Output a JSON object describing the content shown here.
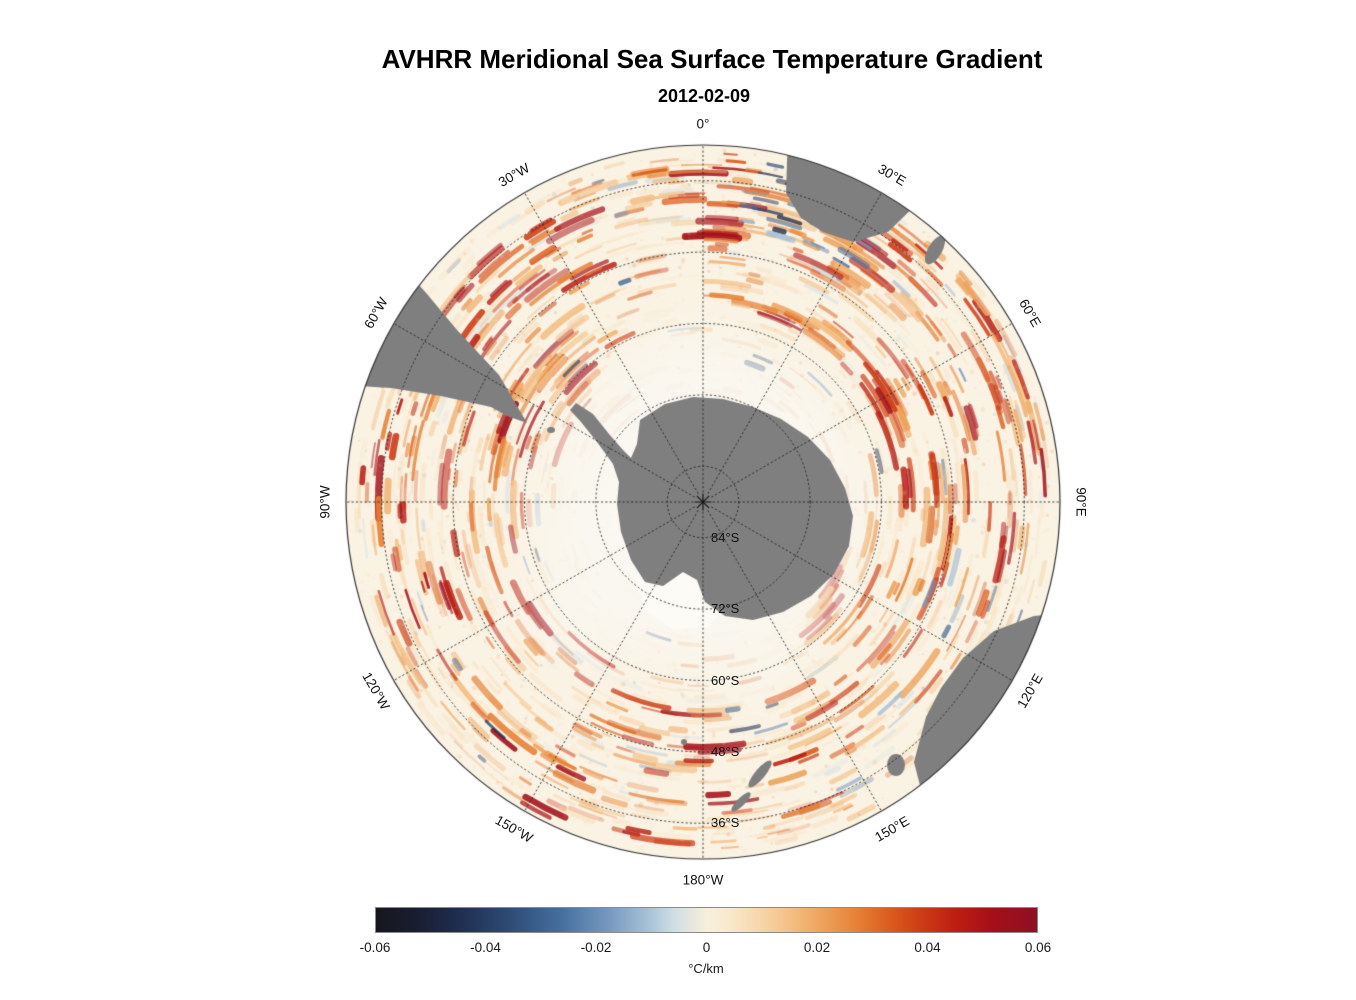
{
  "title": "AVHRR Meridional Sea Surface Temperature Gradient",
  "subtitle": "2012-02-09",
  "chart_data": {
    "type": "heatmap",
    "projection": "south_polar_stereographic",
    "variable": "Meridional Sea Surface Temperature Gradient",
    "instrument": "AVHRR",
    "date": "2012-02-09",
    "units": "°C/km",
    "lon_labels": [
      {
        "label": "0°",
        "azimuth_deg": 0
      },
      {
        "label": "30°E",
        "azimuth_deg": 30
      },
      {
        "label": "60°E",
        "azimuth_deg": 60
      },
      {
        "label": "90°E",
        "azimuth_deg": 90
      },
      {
        "label": "120°E",
        "azimuth_deg": 120
      },
      {
        "label": "150°E",
        "azimuth_deg": 150
      },
      {
        "label": "180°W",
        "azimuth_deg": 180
      },
      {
        "label": "150°W",
        "azimuth_deg": -150
      },
      {
        "label": "120°W",
        "azimuth_deg": -120
      },
      {
        "label": "90°W",
        "azimuth_deg": -90
      },
      {
        "label": "60°W",
        "azimuth_deg": -60
      },
      {
        "label": "30°W",
        "azimuth_deg": -30
      }
    ],
    "lat_labels": [
      {
        "label": "84°S",
        "lat_deg_south": 84
      },
      {
        "label": "72°S",
        "lat_deg_south": 72
      },
      {
        "label": "60°S",
        "lat_deg_south": 60
      },
      {
        "label": "48°S",
        "lat_deg_south": 48
      },
      {
        "label": "36°S",
        "lat_deg_south": 36
      }
    ],
    "colorbar": {
      "min": -0.06,
      "max": 0.06,
      "ticks": [
        "-0.06",
        "-0.04",
        "-0.02",
        "0",
        "0.02",
        "0.04",
        "0.06"
      ],
      "tick_values": [
        -0.06,
        -0.04,
        -0.02,
        0,
        0.02,
        0.04,
        0.06
      ],
      "label": "°C/km",
      "gradient_stops": [
        {
          "pos": 0.0,
          "color": "#16161d"
        },
        {
          "pos": 0.06,
          "color": "#191d30"
        },
        {
          "pos": 0.12,
          "color": "#1f2c4d"
        },
        {
          "pos": 0.2,
          "color": "#2d4a74"
        },
        {
          "pos": 0.28,
          "color": "#466f9e"
        },
        {
          "pos": 0.35,
          "color": "#7597bf"
        },
        {
          "pos": 0.41,
          "color": "#a5c0d6"
        },
        {
          "pos": 0.45,
          "color": "#cfdde4"
        },
        {
          "pos": 0.485,
          "color": "#ece9dd"
        },
        {
          "pos": 0.5,
          "color": "#f7f0de"
        },
        {
          "pos": 0.53,
          "color": "#f9ead0"
        },
        {
          "pos": 0.58,
          "color": "#f7d7ab"
        },
        {
          "pos": 0.63,
          "color": "#f3bd82"
        },
        {
          "pos": 0.68,
          "color": "#eda057"
        },
        {
          "pos": 0.73,
          "color": "#e57f33"
        },
        {
          "pos": 0.78,
          "color": "#da5a1d"
        },
        {
          "pos": 0.83,
          "color": "#cc3914"
        },
        {
          "pos": 0.88,
          "color": "#bc1c12"
        },
        {
          "pos": 0.93,
          "color": "#a70f19"
        },
        {
          "pos": 1.0,
          "color": "#8c1023"
        }
      ]
    },
    "field_notes": [
      "strong positive (red) gradient filaments in Agulhas return / Indian Ocean sector (0°-100°E)",
      "strong positive filaments in Scotia Sea / SW Atlantic sector",
      "scattered negative (blue) patches south of Africa and near Greenwich meridian",
      "pale low-gradient zone around Antarctic sea-ice edge"
    ],
    "map": {
      "outer_lat_deg_south": 30,
      "land_color": "#7f7f7f",
      "ocean_base_color": "#faf2e2",
      "ice_color": "#fcfbf6",
      "graticule_color": "rgba(30,30,30,0.85)",
      "outline_color": "#333333",
      "warm_palette": [
        "#f9e3c2",
        "#f6d2a2",
        "#f3bd82",
        "#eda057",
        "#e57f33",
        "#da5a1d",
        "#cc3914",
        "#b81c12",
        "#a30f1a"
      ],
      "cool_palette": [
        "#d6e2ea",
        "#a5c0d6",
        "#7597bf",
        "#466f9e",
        "#2d4a74",
        "#1f2c4d"
      ],
      "land_polygons": {
        "antarctica": [
          [
            -63,
            -82
          ],
          [
            -38,
            -98
          ],
          [
            -10,
            -105
          ],
          [
            20,
            -103
          ],
          [
            50,
            -95
          ],
          [
            78,
            -83
          ],
          [
            105,
            -65
          ],
          [
            127,
            -42
          ],
          [
            142,
            -14
          ],
          [
            150,
            14
          ],
          [
            146,
            44
          ],
          [
            131,
            72
          ],
          [
            108,
            94
          ],
          [
            80,
            110
          ],
          [
            50,
            118
          ],
          [
            22,
            114
          ],
          [
            2,
            100
          ],
          [
            -6,
            78
          ],
          [
            -20,
            70
          ],
          [
            -40,
            84
          ],
          [
            -58,
            80
          ],
          [
            -72,
            58
          ],
          [
            -82,
            30
          ],
          [
            -86,
            2
          ],
          [
            -84,
            -20
          ],
          [
            -90,
            -38
          ],
          [
            -106,
            -60
          ],
          [
            -122,
            -80
          ],
          [
            -133,
            -92
          ],
          [
            -127,
            -99
          ],
          [
            -110,
            -88
          ],
          [
            -94,
            -68
          ],
          [
            -80,
            -52
          ],
          [
            -72,
            -44
          ],
          [
            -66,
            -58
          ]
        ],
        "south_america": [
          [
            -361,
            -117
          ],
          [
            -335,
            -178
          ],
          [
            -299,
            -234
          ],
          [
            -276,
            -208
          ],
          [
            -246,
            -172
          ],
          [
            -204,
            -127
          ],
          [
            -186,
            -96
          ],
          [
            -176,
            -79
          ],
          [
            -196,
            -86
          ],
          [
            -212,
            -95
          ],
          [
            -262,
            -106
          ],
          [
            -312,
            -114
          ]
        ],
        "africa": [
          [
            85,
            -370
          ],
          [
            130,
            -357
          ],
          [
            178,
            -335
          ],
          [
            223,
            -307
          ],
          [
            185,
            -270
          ],
          [
            150,
            -260
          ],
          [
            120,
            -270
          ],
          [
            98,
            -284
          ],
          [
            83,
            -309
          ]
        ],
        "australia": [
          [
            363,
            111
          ],
          [
            350,
            148
          ],
          [
            329,
            190
          ],
          [
            303,
            229
          ],
          [
            273,
            264
          ],
          [
            223,
            307
          ],
          [
            211,
            260
          ],
          [
            223,
            215
          ],
          [
            238,
            186
          ],
          [
            260,
            156
          ],
          [
            291,
            129
          ],
          [
            331,
            114
          ]
        ]
      },
      "ice_shelf": [
        [
          -50,
          40
        ],
        [
          -10,
          50
        ],
        [
          25,
          70
        ],
        [
          30,
          100
        ],
        [
          5,
          125
        ],
        [
          -30,
          128
        ],
        [
          -58,
          108
        ],
        [
          -68,
          75
        ]
      ],
      "islands": [
        [
          193,
          263,
          9,
          11,
          0
        ],
        [
          57,
          272,
          17,
          5,
          -50
        ],
        [
          38,
          300,
          13,
          4,
          -45
        ],
        [
          232,
          -252,
          7,
          16,
          30
        ],
        [
          -152,
          -72,
          4,
          3,
          0
        ],
        [
          -19,
          240,
          3,
          3,
          0
        ]
      ]
    }
  }
}
